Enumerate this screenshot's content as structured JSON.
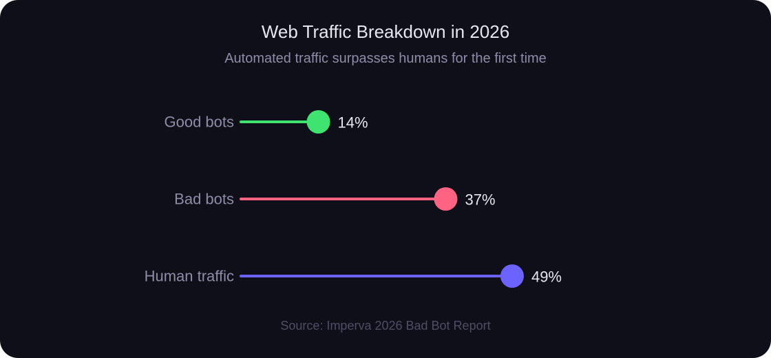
{
  "chart_data": {
    "type": "bar",
    "title": "Web Traffic Breakdown in 2026",
    "subtitle": "Automated traffic surpasses humans for the first time",
    "source": "Source: Imperva 2026 Bad Bot Report",
    "unit": "%",
    "categories": [
      "Good bots",
      "Bad bots",
      "Human traffic"
    ],
    "values": [
      14,
      37,
      49
    ],
    "value_labels": [
      "14%",
      "37%",
      "49%"
    ],
    "colors": [
      "#3ee46f",
      "#ff6381",
      "#6c63ff"
    ],
    "orientation": "horizontal",
    "style": "lollipop",
    "grid": false,
    "legend": "none"
  }
}
